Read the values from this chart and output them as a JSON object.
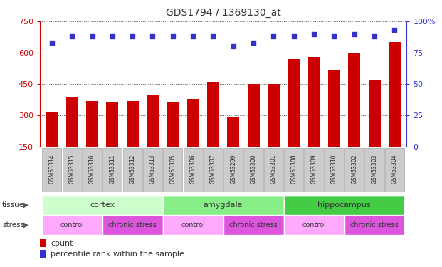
{
  "title": "GDS1794 / 1369130_at",
  "samples": [
    "GSM53314",
    "GSM53315",
    "GSM53316",
    "GSM53311",
    "GSM53312",
    "GSM53313",
    "GSM53305",
    "GSM53306",
    "GSM53307",
    "GSM53299",
    "GSM53300",
    "GSM53301",
    "GSM53308",
    "GSM53309",
    "GSM53310",
    "GSM53302",
    "GSM53303",
    "GSM53304"
  ],
  "counts": [
    315,
    390,
    370,
    365,
    368,
    400,
    365,
    380,
    460,
    295,
    450,
    450,
    570,
    580,
    520,
    600,
    470,
    650
  ],
  "percentiles": [
    83,
    88,
    88,
    88,
    88,
    88,
    88,
    88,
    88,
    80,
    83,
    88,
    88,
    90,
    88,
    90,
    88,
    93
  ],
  "bar_color": "#CC0000",
  "dot_color": "#3333CC",
  "ylim_left": [
    150,
    750
  ],
  "yticks_left": [
    150,
    300,
    450,
    600,
    750
  ],
  "ylim_right": [
    0,
    100
  ],
  "yticks_right": [
    0,
    25,
    50,
    75,
    100
  ],
  "tissue_groups": [
    {
      "label": "cortex",
      "start": 0,
      "end": 6,
      "color": "#ccffcc"
    },
    {
      "label": "amygdala",
      "start": 6,
      "end": 12,
      "color": "#88ee88"
    },
    {
      "label": "hippocampus",
      "start": 12,
      "end": 18,
      "color": "#44cc44"
    }
  ],
  "stress_groups": [
    {
      "label": "control",
      "start": 0,
      "end": 3,
      "color": "#ffaaff"
    },
    {
      "label": "chronic stress",
      "start": 3,
      "end": 6,
      "color": "#dd55dd"
    },
    {
      "label": "control",
      "start": 6,
      "end": 9,
      "color": "#ffaaff"
    },
    {
      "label": "chronic stress",
      "start": 9,
      "end": 12,
      "color": "#dd55dd"
    },
    {
      "label": "control",
      "start": 12,
      "end": 15,
      "color": "#ffaaff"
    },
    {
      "label": "chronic stress",
      "start": 15,
      "end": 18,
      "color": "#dd55dd"
    }
  ],
  "legend_count_color": "#CC0000",
  "legend_dot_color": "#3333CC",
  "background_color": "#ffffff",
  "gridline_color": "#555555",
  "left_tick_color": "#CC0000",
  "right_tick_color": "#3333CC",
  "label_area_color": "#cccccc",
  "label_border_color": "#aaaaaa"
}
